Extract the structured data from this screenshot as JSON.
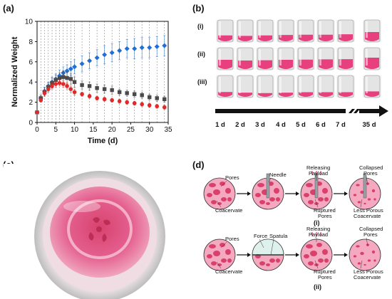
{
  "panels": {
    "a": "(a)",
    "b": "(b)",
    "c": "(c)",
    "d": "(d)"
  },
  "chart_data": {
    "type": "line",
    "xlabel": "Time (d)",
    "ylabel": "Normalized Weight",
    "xlim": [
      0,
      35
    ],
    "ylim": [
      0,
      10
    ],
    "xticks": [
      0,
      5,
      10,
      15,
      20,
      25,
      30,
      35
    ],
    "yticks": [
      0,
      2,
      4,
      6,
      8,
      10
    ],
    "vertical_dashed_lines_at": [
      1,
      2,
      3,
      4,
      5,
      6,
      7,
      8,
      9,
      10,
      12,
      14,
      16,
      18,
      20,
      22,
      24,
      26,
      28,
      30,
      32,
      34
    ],
    "series": [
      {
        "marker": "diamond",
        "color": "#1f6fd6",
        "x": [
          0,
          1,
          2,
          3,
          4,
          5,
          6,
          7,
          8,
          9,
          10,
          12,
          14,
          16,
          18,
          20,
          22,
          24,
          26,
          28,
          30,
          32,
          34
        ],
        "y": [
          1.0,
          2.4,
          3.1,
          3.6,
          4.0,
          4.3,
          4.6,
          4.9,
          5.1,
          5.3,
          5.5,
          5.8,
          6.1,
          6.4,
          6.7,
          6.9,
          7.1,
          7.3,
          7.3,
          7.4,
          7.4,
          7.5,
          7.6
        ],
        "err": [
          0.1,
          0.3,
          0.4,
          0.4,
          0.5,
          0.5,
          0.6,
          0.6,
          0.6,
          0.7,
          0.7,
          0.8,
          0.8,
          0.8,
          0.9,
          0.9,
          0.9,
          0.9,
          1.0,
          1.0,
          1.0,
          1.0,
          1.0
        ]
      },
      {
        "marker": "square",
        "color": "#4a4a4a",
        "x": [
          0,
          1,
          2,
          3,
          4,
          5,
          6,
          7,
          8,
          9,
          10,
          12,
          14,
          16,
          18,
          20,
          22,
          24,
          26,
          28,
          30,
          32,
          34
        ],
        "y": [
          1.0,
          2.4,
          3.0,
          3.5,
          3.9,
          4.2,
          4.4,
          4.5,
          4.4,
          4.3,
          4.0,
          3.7,
          3.6,
          3.4,
          3.3,
          3.2,
          3.0,
          2.9,
          2.8,
          2.7,
          2.5,
          2.4,
          2.3
        ],
        "err": [
          0.1,
          0.3,
          0.4,
          0.4,
          0.5,
          0.5,
          0.5,
          0.6,
          0.6,
          0.5,
          0.5,
          0.4,
          0.4,
          0.4,
          0.4,
          0.4,
          0.3,
          0.3,
          0.3,
          0.3,
          0.3,
          0.3,
          0.3
        ]
      },
      {
        "marker": "circle",
        "color": "#e02a2a",
        "x": [
          0,
          1,
          2,
          3,
          4,
          5,
          6,
          7,
          8,
          9,
          10,
          12,
          14,
          16,
          18,
          20,
          22,
          24,
          26,
          28,
          30,
          32,
          34
        ],
        "y": [
          1.0,
          2.2,
          2.9,
          3.3,
          3.6,
          3.8,
          3.9,
          3.8,
          3.6,
          3.3,
          3.0,
          2.8,
          2.6,
          2.4,
          2.3,
          2.2,
          2.1,
          2.0,
          1.9,
          1.8,
          1.7,
          1.6,
          1.5
        ],
        "err": [
          0.1,
          0.2,
          0.3,
          0.3,
          0.3,
          0.3,
          0.3,
          0.3,
          0.3,
          0.3,
          0.3,
          0.2,
          0.2,
          0.2,
          0.2,
          0.2,
          0.2,
          0.2,
          0.2,
          0.2,
          0.2,
          0.2,
          0.2
        ]
      }
    ]
  },
  "vial_panel": {
    "rows": [
      {
        "label": "(i)",
        "fill_levels": [
          0.3,
          0.28,
          0.3,
          0.32,
          0.33,
          0.33,
          0.35,
          0.45
        ]
      },
      {
        "label": "(ii)",
        "fill_levels": [
          0.45,
          0.42,
          0.43,
          0.45,
          0.46,
          0.47,
          0.48,
          0.55
        ]
      },
      {
        "label": "(iii)",
        "fill_levels": [
          0.25,
          0.22,
          0.2,
          0.22,
          0.24,
          0.24,
          0.24,
          0.28
        ]
      }
    ],
    "timeline": [
      "1 d",
      "2 d",
      "3 d",
      "4 d",
      "5 d",
      "6 d",
      "7 d",
      "35 d"
    ],
    "colors": {
      "gel": "#e8407f",
      "glass": "#e4e4e4",
      "shadow": "#a9a9a9"
    }
  },
  "photo_panel": {
    "colors": {
      "outer": "#cfcfcf",
      "rim": "#f2e7ea",
      "gel": "#e4608f",
      "center": "#d8426f"
    }
  },
  "schematic": {
    "rows": [
      {
        "numeral": "(i)",
        "stage1": {
          "pores": "Pores",
          "coacervate": "Coacervate"
        },
        "stage2": {
          "tool": "Needle"
        },
        "stage3": {
          "releasing": "Releasing",
          "payload": "Payload",
          "ruptured": "Ruptured",
          "pores": "Pores"
        },
        "stage4": {
          "collapsed": "Collapsed",
          "pores": "Pores",
          "less_porous": "Less Porous",
          "coacervate": "Coacervate"
        }
      },
      {
        "numeral": "(ii)",
        "stage1": {
          "pores": "Pores",
          "coacervate": "Coacervate"
        },
        "stage2": {
          "force": "Force",
          "tool": "Spatula"
        },
        "stage3": {
          "releasing": "Releasing",
          "payload": "Payload",
          "ruptured": "Ruptured",
          "pores": "Pores"
        },
        "stage4": {
          "collapsed": "Collapsed",
          "pores": "Pores",
          "less_porous": "Less Porous",
          "coacervate": "Coacervate"
        }
      }
    ],
    "colors": {
      "disc": "#f5a9c0",
      "blob": "#d9406c",
      "outline": "#333333",
      "force_zone": "#dff1ec"
    }
  }
}
